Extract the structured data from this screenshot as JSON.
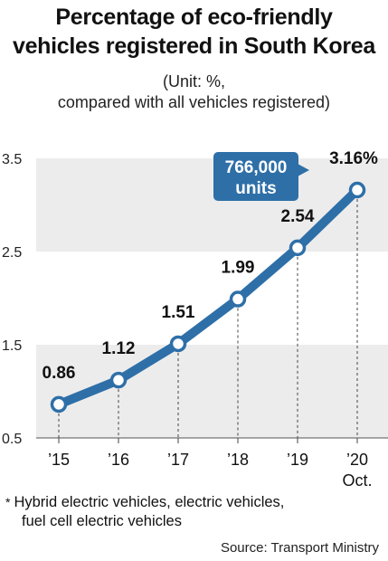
{
  "title_line1": "Percentage of eco-friendly",
  "title_line2": "vehicles registered in South Korea",
  "unit_line1": "(Unit: %,",
  "unit_line2": "compared with all vehicles registered)",
  "callout": {
    "line1": "766,000",
    "line2": "units"
  },
  "footnote": {
    "marker": "*",
    "line1": "Hybrid electric vehicles, electric vehicles,",
    "line2": "fuel cell electric vehicles"
  },
  "source": "Source: Transport Ministry",
  "colors": {
    "line": "#2e6fa8",
    "band": "#ececec",
    "callout": "#2e6fa8"
  },
  "chart_data": {
    "type": "line",
    "categories": [
      "’15",
      "’16",
      "’17",
      "’18",
      "’19",
      "’20"
    ],
    "category_sublabels": [
      "",
      "",
      "",
      "",
      "",
      "Oct."
    ],
    "values": [
      0.86,
      1.12,
      1.51,
      1.99,
      2.54,
      3.16
    ],
    "value_labels": [
      "0.86",
      "1.12",
      "1.51",
      "1.99",
      "2.54",
      "3.16%"
    ],
    "y_ticks": [
      3.5,
      2.5,
      1.5,
      0.5
    ],
    "y_tick_labels": [
      "3.5",
      "2.5",
      "1.5",
      "0.5"
    ],
    "ylim": [
      0.5,
      3.5
    ],
    "shaded_bands": [
      [
        1.5,
        2.5
      ],
      [
        0.5,
        1.5
      ],
      [
        2.5,
        3.5
      ]
    ],
    "grid": false
  }
}
